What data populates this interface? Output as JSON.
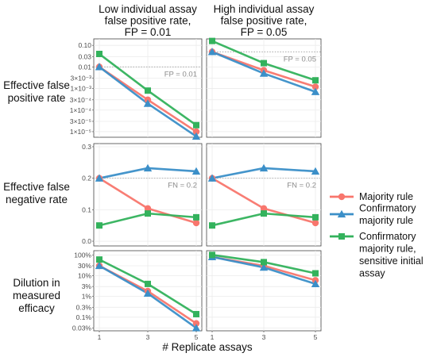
{
  "chart_data": {
    "type": "line",
    "x": [
      1,
      3,
      5
    ],
    "xlabel": "# Replicate assays",
    "x_ticks": [
      "1",
      "3",
      "5"
    ],
    "column_titles": [
      [
        "Low individual assay",
        "false positive rate,",
        "FP = 0.01"
      ],
      [
        "High individual assay",
        "false positive rate,",
        "FP = 0.05"
      ]
    ],
    "row_labels": [
      [
        "Effective false",
        "positive rate"
      ],
      [
        "Effective false",
        "negative rate"
      ],
      [
        "Dilution in",
        "measured",
        "efficacy"
      ]
    ],
    "legend": {
      "placement": "right",
      "entries": [
        {
          "key": "majority",
          "lines": [
            "Majority rule"
          ]
        },
        {
          "key": "confirmatory",
          "lines": [
            "Confirmatory",
            "majority rule"
          ]
        },
        {
          "key": "sensitive",
          "lines": [
            "Confirmatory",
            "majority rule,",
            "sensitive initial",
            "assay"
          ]
        }
      ]
    },
    "colors": {
      "majority": "#F8766D",
      "confirmatory": "#3B8FC8",
      "sensitive": "#33B25C"
    },
    "markers": {
      "majority": "circle",
      "confirmatory": "triangle",
      "sensitive": "square"
    },
    "rows": [
      {
        "scale": "log",
        "ylim": [
          5.5e-06,
          0.2
        ],
        "ticks": [
          {
            "v": 0.1,
            "t": "0.10"
          },
          {
            "v": 0.03,
            "t": "0.03"
          },
          {
            "v": 0.01,
            "t": "0.01"
          },
          {
            "v": 0.003,
            "t": "3×10⁻³"
          },
          {
            "v": 0.001,
            "t": "1×10⁻³"
          },
          {
            "v": 0.0003,
            "t": "3×10⁻⁴"
          },
          {
            "v": 0.0001,
            "t": "1×10⁻⁴"
          },
          {
            "v": 3e-05,
            "t": "3×10⁻⁵"
          },
          {
            "v": 1e-05,
            "t": "1×10⁻⁵"
          }
        ],
        "panels": [
          {
            "ref_line": {
              "y": 0.01,
              "label": "FP = 0.01"
            },
            "series": {
              "majority": [
                0.01,
                0.0003,
                1e-05
              ],
              "confirmatory": [
                0.01,
                0.0002,
                6e-06
              ],
              "sensitive": [
                0.04,
                0.0008,
                2e-05
              ]
            }
          },
          {
            "ref_line": {
              "y": 0.05,
              "label": "FP = 0.05"
            },
            "series": {
              "majority": [
                0.05,
                0.007,
                0.0012
              ],
              "confirmatory": [
                0.05,
                0.005,
                0.0007
              ],
              "sensitive": [
                0.16,
                0.015,
                0.0024
              ]
            }
          }
        ]
      },
      {
        "scale": "linear",
        "ylim": [
          -0.015,
          0.31
        ],
        "ticks": [
          {
            "v": 0.3,
            "t": "0.3"
          },
          {
            "v": 0.2,
            "t": "0.2"
          },
          {
            "v": 0.1,
            "t": "0.1"
          },
          {
            "v": 0.0,
            "t": "0.0"
          }
        ],
        "panels": [
          {
            "ref_line": {
              "y": 0.2,
              "label": "FN = 0.2"
            },
            "series": {
              "majority": [
                0.2,
                0.104,
                0.058
              ],
              "confirmatory": [
                0.2,
                0.232,
                0.222
              ],
              "sensitive": [
                0.05,
                0.088,
                0.076
              ]
            }
          },
          {
            "ref_line": {
              "y": 0.2,
              "label": "FN = 0.2"
            },
            "series": {
              "majority": [
                0.2,
                0.104,
                0.058
              ],
              "confirmatory": [
                0.2,
                0.232,
                0.222
              ],
              "sensitive": [
                0.05,
                0.088,
                0.076
              ]
            }
          }
        ]
      },
      {
        "scale": "log",
        "ylim": [
          0.00022,
          1.6
        ],
        "ticks": [
          {
            "v": 1,
            "t": "100%"
          },
          {
            "v": 0.3,
            "t": "30%"
          },
          {
            "v": 0.1,
            "t": "10%"
          },
          {
            "v": 0.03,
            "t": "3%"
          },
          {
            "v": 0.01,
            "t": "1%"
          },
          {
            "v": 0.003,
            "t": "0.3%"
          },
          {
            "v": 0.001,
            "t": "0.1%"
          },
          {
            "v": 0.0003,
            "t": "0.03%"
          }
        ],
        "panels": [
          {
            "series": {
              "majority": [
                0.3,
                0.018,
                0.0005
              ],
              "confirmatory": [
                0.3,
                0.014,
                0.0003
              ],
              "sensitive": [
                0.6,
                0.04,
                0.0014
              ]
            }
          },
          {
            "series": {
              "majority": [
                0.8,
                0.3,
                0.06
              ],
              "confirmatory": [
                0.8,
                0.25,
                0.04
              ],
              "sensitive": [
                1.0,
                0.45,
                0.13
              ]
            }
          }
        ]
      }
    ]
  }
}
